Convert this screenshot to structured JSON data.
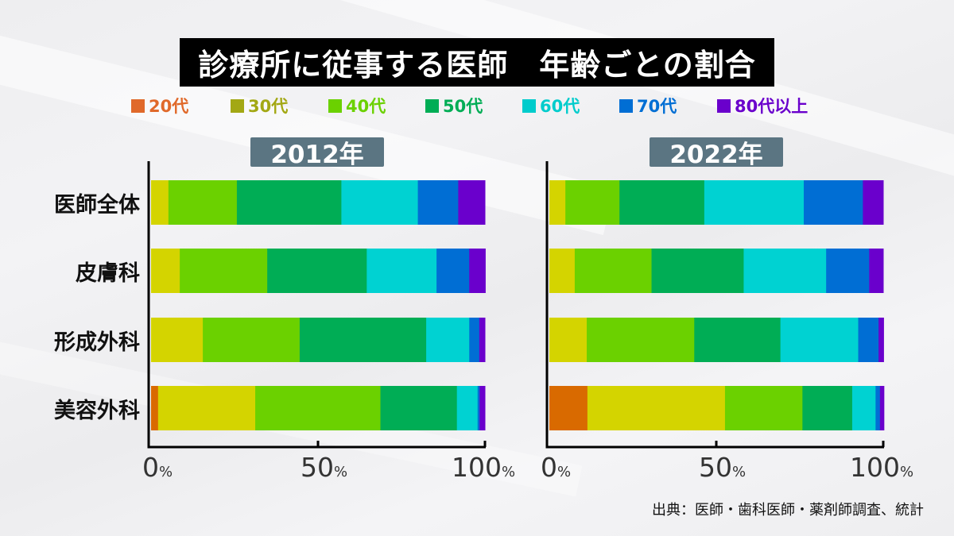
{
  "title": "診療所に従事する医師　年齢ごとの割合",
  "source": "出典：医師・歯科医師・薬剤師調査、統計",
  "chart_data": [
    {
      "type": "bar",
      "orientation": "horizontal-stacked-100",
      "title": "2012年",
      "categories": [
        "医師全体",
        "皮膚科",
        "形成外科",
        "美容外科"
      ],
      "xlim": [
        0,
        100
      ],
      "xticks": [
        "0%",
        "50%",
        "100%"
      ],
      "series": [
        {
          "name": "20代",
          "color": "#d96a00",
          "values": [
            0.0,
            0.0,
            0.0,
            2.1
          ]
        },
        {
          "name": "30代",
          "color": "#d4d400",
          "values": [
            5.2,
            8.6,
            15.5,
            29.1
          ]
        },
        {
          "name": "40代",
          "color": "#6bd100",
          "values": [
            20.5,
            26.2,
            29.0,
            37.5
          ]
        },
        {
          "name": "50代",
          "color": "#00ad55",
          "values": [
            31.3,
            29.8,
            37.9,
            22.9
          ]
        },
        {
          "name": "60代",
          "color": "#00d2d2",
          "values": [
            22.9,
            20.9,
            12.9,
            6.2
          ]
        },
        {
          "name": "70代",
          "color": "#006ed4",
          "values": [
            12.1,
            9.8,
            3.0,
            0.6
          ]
        },
        {
          "name": "80代以上",
          "color": "#6a00cc",
          "values": [
            8.0,
            4.8,
            1.7,
            1.6
          ]
        }
      ]
    },
    {
      "type": "bar",
      "orientation": "horizontal-stacked-100",
      "title": "2022年",
      "categories": [
        "医師全体",
        "皮膚科",
        "形成外科",
        "美容外科"
      ],
      "xlim": [
        0,
        100
      ],
      "xticks": [
        "0%",
        "50%",
        "100%"
      ],
      "series": [
        {
          "name": "20代",
          "color": "#d96a00",
          "values": [
            0.0,
            0.0,
            0.0,
            11.4
          ]
        },
        {
          "name": "30代",
          "color": "#d4d400",
          "values": [
            4.8,
            7.6,
            11.2,
            41.2
          ]
        },
        {
          "name": "40代",
          "color": "#6bd100",
          "values": [
            16.2,
            23.0,
            32.2,
            23.2
          ]
        },
        {
          "name": "50代",
          "color": "#00ad55",
          "values": [
            25.4,
            27.6,
            25.8,
            14.9
          ]
        },
        {
          "name": "60代",
          "color": "#00d2d2",
          "values": [
            29.8,
            24.7,
            23.3,
            7.0
          ]
        },
        {
          "name": "70代",
          "color": "#006ed4",
          "values": [
            17.7,
            12.9,
            6.1,
            1.3
          ]
        },
        {
          "name": "80代以上",
          "color": "#6a00cc",
          "values": [
            6.1,
            4.2,
            1.5,
            1.2
          ]
        }
      ]
    }
  ],
  "legend": [
    {
      "label": "20代",
      "swatch": "#e0692a",
      "text_color": "#e0692a"
    },
    {
      "label": "30代",
      "swatch": "#a3a814",
      "text_color": "#a3a814"
    },
    {
      "label": "40代",
      "swatch": "#6bd100",
      "text_color": "#6bd100"
    },
    {
      "label": "50代",
      "swatch": "#00ad55",
      "text_color": "#00ad55"
    },
    {
      "label": "60代",
      "swatch": "#00cccc",
      "text_color": "#00cccc"
    },
    {
      "label": "70代",
      "swatch": "#006ed4",
      "text_color": "#006ed4"
    },
    {
      "label": "80代以上",
      "swatch": "#6a00cc",
      "text_color": "#6a00cc"
    }
  ],
  "tick_pct": "%",
  "tick_numbers": [
    "0",
    "50",
    "100"
  ]
}
